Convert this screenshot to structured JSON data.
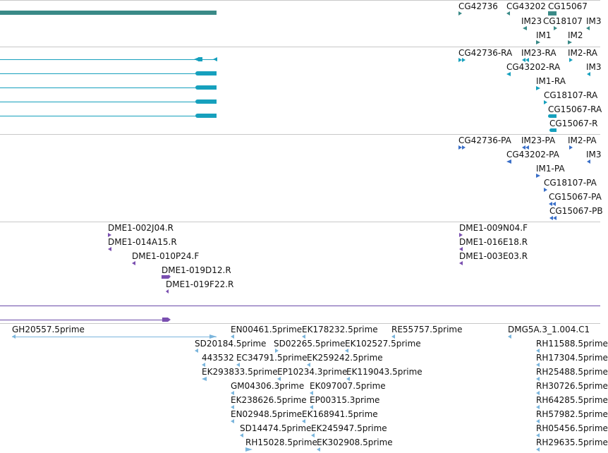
{
  "colors": {
    "gene_teal": "#3a8a87",
    "transcript_cyan": "#16a0bd",
    "protein_blue": "#3a6fc8",
    "clone_purple": "#7a4fb0",
    "est_lightblue": "#7ab5dc",
    "divider": "#c8c8c8",
    "track_line_purple": "#6a4aa8"
  },
  "tracks": {
    "genes": {
      "labels": [
        "CG42736",
        "CG43202",
        "CG15067",
        "IM23",
        "CG18107",
        "IM3",
        "IM1",
        "IM2"
      ]
    },
    "transcripts": {
      "labels": [
        "CG42736-RA",
        "IM23-RA",
        "IM2-RA",
        "CG43202-RA",
        "IM3",
        "IM1-RA",
        "CG18107-RA",
        "CG15067-RA",
        "CG15067-R"
      ]
    },
    "proteins": {
      "labels": [
        "CG42736-PA",
        "IM23-PA",
        "IM2-PA",
        "CG43202-PA",
        "IM3",
        "IM1-PA",
        "CG18107-PA",
        "CG15067-PA",
        "CG15067-PB"
      ]
    },
    "clones": {
      "labels": [
        "DME1-002J04.R",
        "DME1-014A15.R",
        "DME1-010P24.F",
        "DME1-019D12.R",
        "DME1-019F22.R",
        "DME1-009N04.F",
        "DME1-016E18.R",
        "DME1-003E03.R"
      ]
    },
    "ests": {
      "labels": [
        "GH20557.5prime",
        "EN00461.5prime",
        "EK178232.5prime",
        "RE55757.5prime",
        "DMG5A.3_1.004.C1",
        "SD20184.5prime",
        "SD02265.5prime",
        "EK102527.5prime",
        "RH11588.5prime",
        "443532",
        "EC34791.5prime",
        "EK259242.5prime",
        "RH17304.5prime",
        "EK293833.5prime",
        "EP10234.3prime",
        "EK119043.5prime",
        "RH25488.5prime",
        "GM04306.3prime",
        "EK097007.5prime",
        "RH30726.5prime",
        "EK238626.5prime",
        "EP00315.3prime",
        "RH64285.5prime",
        "EN02948.5prime",
        "EK168941.5prime",
        "RH57982.5prime",
        "SD14474.5prime",
        "EK245947.5prime",
        "RH05456.5prime",
        "RH15028.5prime",
        "EK302908.5prime",
        "RH29635.5prime"
      ]
    }
  }
}
